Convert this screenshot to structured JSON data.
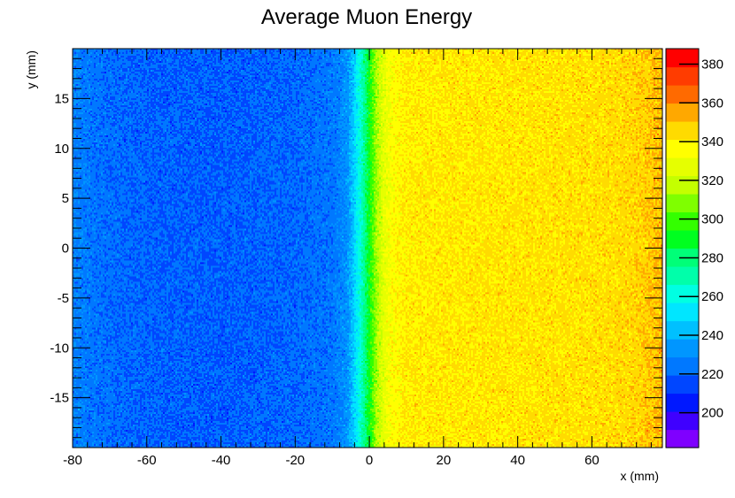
{
  "chart_data": {
    "type": "heatmap",
    "title": "Average Muon Energy",
    "xlabel": "x (mm)",
    "ylabel": "y (mm)",
    "xlim": [
      -80,
      79
    ],
    "ylim": [
      -20,
      20
    ],
    "x_ticks": [
      -80,
      -60,
      -40,
      -20,
      0,
      20,
      40,
      60
    ],
    "y_ticks": [
      -15,
      -10,
      -5,
      0,
      5,
      10,
      15
    ],
    "x_tick_labels": [
      "-80",
      "-60",
      "-40",
      "-20",
      "0",
      "20",
      "40",
      "60"
    ],
    "y_tick_labels": [
      "-15",
      "-10",
      "-5",
      "0",
      "5",
      "10",
      "15"
    ],
    "colorbar": {
      "range": [
        182,
        388
      ],
      "ticks": [
        200,
        220,
        240,
        260,
        280,
        300,
        320,
        340,
        360,
        380
      ],
      "tick_labels": [
        "200",
        "220",
        "240",
        "260",
        "280",
        "300",
        "320",
        "340",
        "360",
        "380"
      ],
      "colors": [
        "#7f00ff",
        "#3f00ff",
        "#0018ff",
        "#0046ff",
        "#0078ff",
        "#0096ff",
        "#00c0ff",
        "#00e6ff",
        "#00ffe2",
        "#00ffaa",
        "#00ff78",
        "#00ff20",
        "#33ff00",
        "#7fff00",
        "#c4ff00",
        "#e6ff00",
        "#ffff00",
        "#ffdb00",
        "#ffa800",
        "#ff6a00",
        "#ff3c00",
        "#ff0000"
      ]
    },
    "profile": {
      "x": [
        -80,
        -75,
        -70,
        -60,
        -40,
        -20,
        -10,
        -6,
        -4,
        -2,
        0,
        2,
        4,
        6,
        10,
        20,
        40,
        60,
        70,
        75,
        79
      ],
      "value": [
        228,
        224,
        222,
        220,
        219,
        221,
        224,
        232,
        248,
        268,
        292,
        314,
        328,
        336,
        341,
        342,
        343,
        344,
        346,
        349,
        352
      ]
    },
    "grid": false,
    "colorbar_position": "right"
  }
}
